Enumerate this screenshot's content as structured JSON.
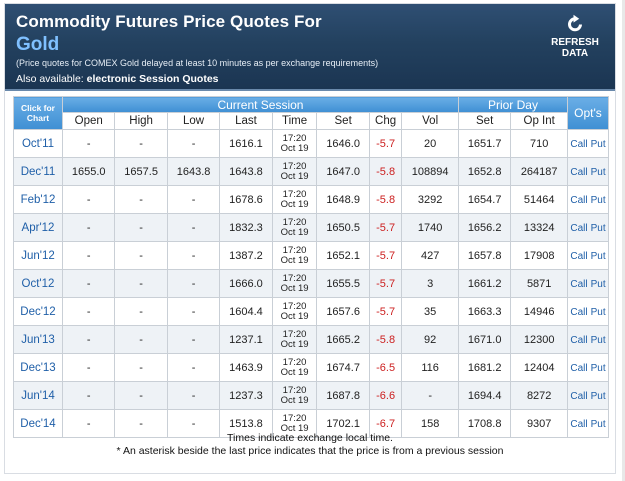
{
  "header": {
    "title": "Commodity Futures Price Quotes For",
    "commodity": "Gold",
    "delay_note": "(Price quotes for COMEX Gold delayed at least 10 minutes as per exchange requirements)",
    "also_prefix": "Also available:",
    "also_link": "electronic Session Quotes",
    "refresh_line1": "REFRESH",
    "refresh_line2": "DATA",
    "refresh_icon": "refresh-arrow-icon"
  },
  "table": {
    "click_for": "Click for",
    "chart": "Chart",
    "current_session": "Current Session",
    "prior_day": "Prior Day",
    "opts": "Opt's",
    "columns": {
      "open": "Open",
      "high": "High",
      "low": "Low",
      "last": "Last",
      "time": "Time",
      "set": "Set",
      "chg": "Chg",
      "vol": "Vol",
      "prior_set": "Set",
      "op_int": "Op Int"
    },
    "call_label": "Call",
    "put_label": "Put",
    "rows": [
      {
        "month": "Oct'11",
        "open": "-",
        "high": "-",
        "low": "-",
        "last": "1616.1",
        "time1": "17:20",
        "time2": "Oct 19",
        "set": "1646.0",
        "chg": "-5.7",
        "vol": "20",
        "prior_set": "1651.7",
        "op_int": "710"
      },
      {
        "month": "Dec'11",
        "open": "1655.0",
        "high": "1657.5",
        "low": "1643.8",
        "last": "1643.8",
        "time1": "17:20",
        "time2": "Oct 19",
        "set": "1647.0",
        "chg": "-5.8",
        "vol": "108894",
        "prior_set": "1652.8",
        "op_int": "264187"
      },
      {
        "month": "Feb'12",
        "open": "-",
        "high": "-",
        "low": "-",
        "last": "1678.6",
        "time1": "17:20",
        "time2": "Oct 19",
        "set": "1648.9",
        "chg": "-5.8",
        "vol": "3292",
        "prior_set": "1654.7",
        "op_int": "51464"
      },
      {
        "month": "Apr'12",
        "open": "-",
        "high": "-",
        "low": "-",
        "last": "1832.3",
        "time1": "17:20",
        "time2": "Oct 19",
        "set": "1650.5",
        "chg": "-5.7",
        "vol": "1740",
        "prior_set": "1656.2",
        "op_int": "13324"
      },
      {
        "month": "Jun'12",
        "open": "-",
        "high": "-",
        "low": "-",
        "last": "1387.2",
        "time1": "17:20",
        "time2": "Oct 19",
        "set": "1652.1",
        "chg": "-5.7",
        "vol": "427",
        "prior_set": "1657.8",
        "op_int": "17908"
      },
      {
        "month": "Oct'12",
        "open": "-",
        "high": "-",
        "low": "-",
        "last": "1666.0",
        "time1": "17:20",
        "time2": "Oct 19",
        "set": "1655.5",
        "chg": "-5.7",
        "vol": "3",
        "prior_set": "1661.2",
        "op_int": "5871"
      },
      {
        "month": "Dec'12",
        "open": "-",
        "high": "-",
        "low": "-",
        "last": "1604.4",
        "time1": "17:20",
        "time2": "Oct 19",
        "set": "1657.6",
        "chg": "-5.7",
        "vol": "35",
        "prior_set": "1663.3",
        "op_int": "14946"
      },
      {
        "month": "Jun'13",
        "open": "-",
        "high": "-",
        "low": "-",
        "last": "1237.1",
        "time1": "17:20",
        "time2": "Oct 19",
        "set": "1665.2",
        "chg": "-5.8",
        "vol": "92",
        "prior_set": "1671.0",
        "op_int": "12300"
      },
      {
        "month": "Dec'13",
        "open": "-",
        "high": "-",
        "low": "-",
        "last": "1463.9",
        "time1": "17:20",
        "time2": "Oct 19",
        "set": "1674.7",
        "chg": "-6.5",
        "vol": "116",
        "prior_set": "1681.2",
        "op_int": "12404"
      },
      {
        "month": "Jun'14",
        "open": "-",
        "high": "-",
        "low": "-",
        "last": "1237.3",
        "time1": "17:20",
        "time2": "Oct 19",
        "set": "1687.8",
        "chg": "-6.6",
        "vol": "-",
        "prior_set": "1694.4",
        "op_int": "8272"
      },
      {
        "month": "Dec'14",
        "open": "-",
        "high": "-",
        "low": "-",
        "last": "1513.8",
        "time1": "17:20",
        "time2": "Oct 19",
        "set": "1702.1",
        "chg": "-6.7",
        "vol": "158",
        "prior_set": "1708.8",
        "op_int": "9307"
      }
    ]
  },
  "footer": {
    "line1": "Times indicate exchange local time.",
    "line2": "* An asterisk beside the last price indicates that the price is from a previous session"
  },
  "colors": {
    "header_bg": "#23415f",
    "commodity": "#7fc0ff",
    "table_head": "#3f8fd3",
    "link": "#1f5fa8",
    "negative_change": "#cc1f1f",
    "row_alt": "#eef2f6"
  }
}
